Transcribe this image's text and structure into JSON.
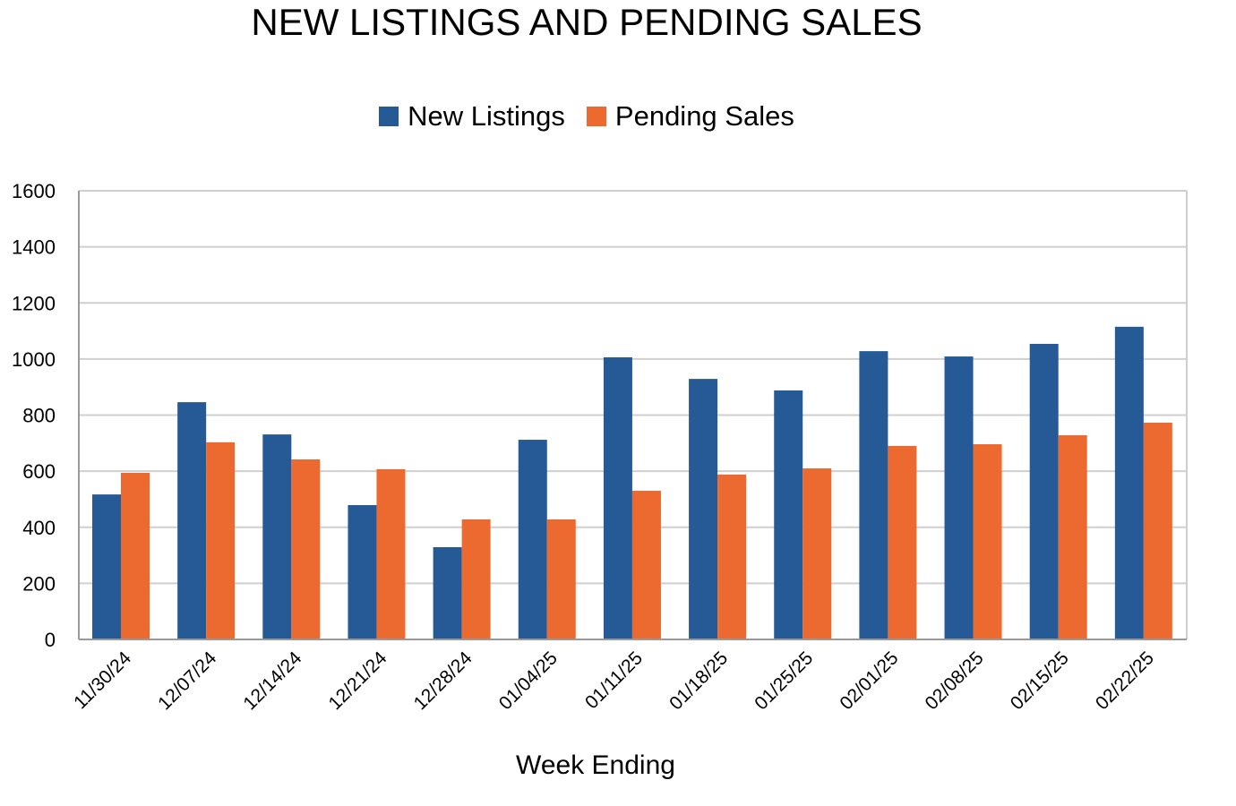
{
  "chart_data": {
    "type": "bar",
    "title": "NEW LISTINGS AND PENDING SALES",
    "xlabel": "Week Ending",
    "ylabel": "",
    "ylim": [
      0,
      1600
    ],
    "yticks": [
      0,
      200,
      400,
      600,
      800,
      1000,
      1200,
      1400,
      1600
    ],
    "grid": true,
    "legend_position": "top-center",
    "categories": [
      "11/30/24",
      "12/07/24",
      "12/14/24",
      "12/21/24",
      "12/28/24",
      "01/04/25",
      "01/11/25",
      "01/18/25",
      "01/25/25",
      "02/01/25",
      "02/08/25",
      "02/15/25",
      "02/22/25"
    ],
    "series": [
      {
        "name": "New Listings",
        "color": "#255A96",
        "values": [
          517,
          846,
          731,
          479,
          329,
          712,
          1006,
          929,
          888,
          1028,
          1009,
          1054,
          1115
        ]
      },
      {
        "name": "Pending Sales",
        "color": "#EC6930",
        "values": [
          594,
          703,
          642,
          607,
          428,
          428,
          530,
          588,
          610,
          690,
          696,
          728,
          773
        ]
      }
    ]
  }
}
